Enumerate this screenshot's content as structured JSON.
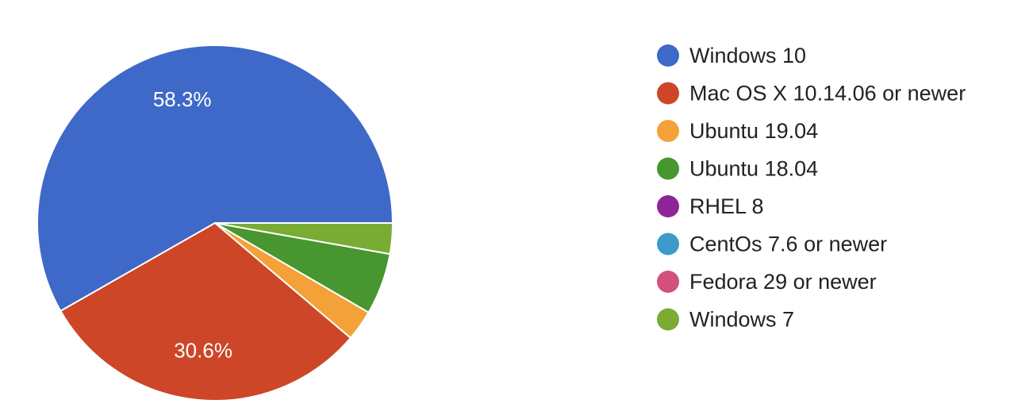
{
  "chart_data": {
    "type": "pie",
    "title": "",
    "legend_position": "right",
    "start_angle_deg": 90,
    "direction": "counterclockwise",
    "slices": [
      {
        "label": "Windows 10",
        "value": 58.3,
        "color": "#3e69c8",
        "value_label": "58.3%"
      },
      {
        "label": "Mac OS X 10.14.06 or newer",
        "value": 30.6,
        "color": "#cc4627",
        "value_label": "30.6%"
      },
      {
        "label": "Ubuntu 19.04",
        "value": 2.8,
        "color": "#f4a139",
        "value_label": ""
      },
      {
        "label": "Ubuntu 18.04",
        "value": 5.6,
        "color": "#47962f",
        "value_label": ""
      },
      {
        "label": "RHEL 8",
        "value": 0,
        "color": "#8e2597",
        "value_label": ""
      },
      {
        "label": "CentOs 7.6 or newer",
        "value": 0,
        "color": "#3d9bcb",
        "value_label": ""
      },
      {
        "label": "Fedora 29 or newer",
        "value": 0,
        "color": "#d3507b",
        "value_label": ""
      },
      {
        "label": "Windows 7",
        "value": 2.8,
        "color": "#7aab33",
        "value_label": ""
      }
    ]
  }
}
